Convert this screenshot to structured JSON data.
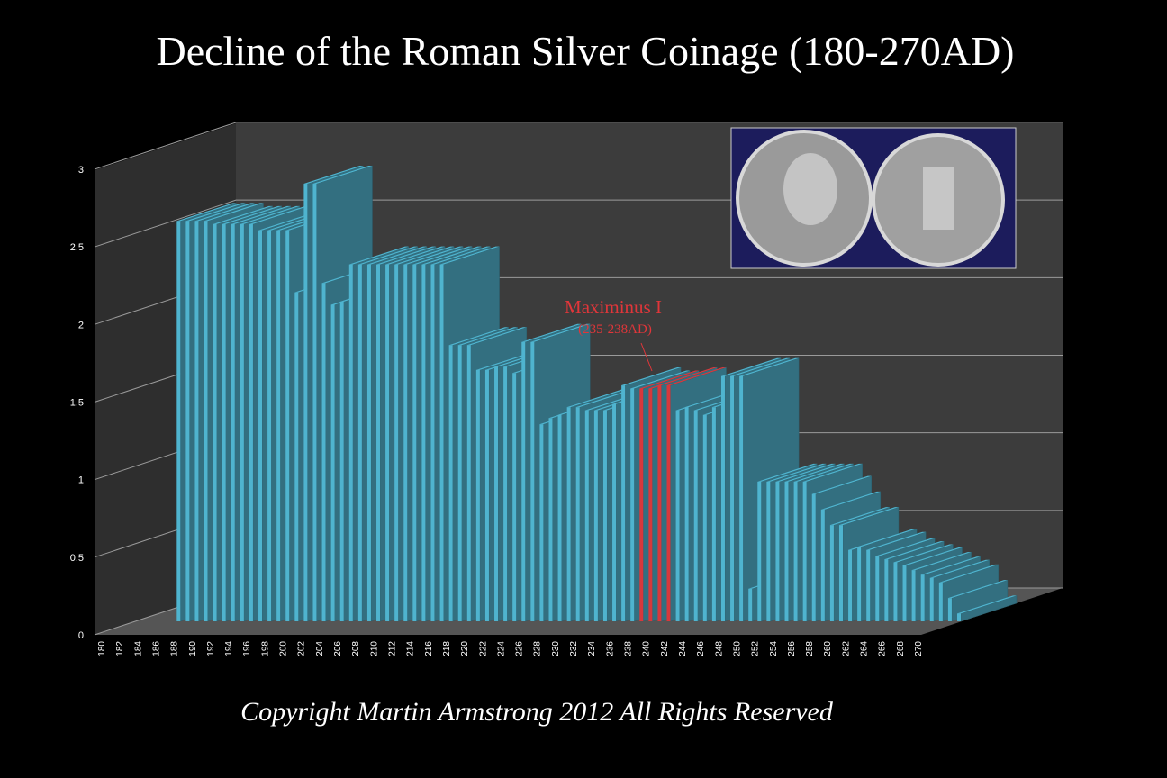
{
  "chart_data": {
    "type": "bar3d",
    "title": "Decline of the Roman Silver Coinage (180-270AD)",
    "footer": "Copyright Martin Armstrong 2012 All Rights Reserved",
    "categories": [
      "180",
      null,
      "182",
      null,
      "184",
      null,
      "186",
      null,
      "188",
      null,
      "190",
      null,
      "192",
      null,
      "194",
      null,
      "196",
      null,
      "198",
      null,
      "200",
      null,
      "202",
      null,
      "204",
      null,
      "206",
      null,
      "208",
      null,
      "210",
      null,
      "212",
      null,
      "214",
      null,
      "216",
      null,
      "218",
      null,
      "220",
      null,
      "222",
      null,
      "224",
      null,
      "226",
      null,
      "228",
      null,
      "230",
      null,
      "232",
      null,
      "234",
      null,
      "236",
      null,
      "238",
      null,
      "240",
      null,
      "242",
      null,
      "244",
      null,
      "246",
      null,
      "248",
      null,
      "250",
      null,
      "252",
      null,
      "254",
      null,
      "256",
      null,
      "258",
      null,
      "260",
      null,
      "262",
      null,
      "264",
      null,
      "266",
      null,
      "268",
      null,
      "270"
    ],
    "values": [
      null,
      null,
      null,
      null,
      2.58,
      2.58,
      2.58,
      2.58,
      2.56,
      2.56,
      2.56,
      2.56,
      2.56,
      2.52,
      2.52,
      2.52,
      2.52,
      2.12,
      2.82,
      2.82,
      2.18,
      2.04,
      2.06,
      2.3,
      2.3,
      2.3,
      2.3,
      2.3,
      2.3,
      2.3,
      2.3,
      2.3,
      2.3,
      2.3,
      1.78,
      1.78,
      1.78,
      1.62,
      1.62,
      1.64,
      1.64,
      1.6,
      1.8,
      1.8,
      1.27,
      1.31,
      1.33,
      1.38,
      1.38,
      1.36,
      1.36,
      1.36,
      1.4,
      1.52,
      1.5,
      1.5,
      1.5,
      1.52,
      1.52,
      1.36,
      1.38,
      1.36,
      1.33,
      1.38,
      1.58,
      1.58,
      1.58,
      0.21,
      0.9,
      0.9,
      0.9,
      0.9,
      0.9,
      0.9,
      0.82,
      0.72,
      0.62,
      0.62,
      0.46,
      0.48,
      0.46,
      0.42,
      0.4,
      0.38,
      0.36,
      0.33,
      0.3,
      0.28,
      0.25,
      0.15,
      0.05
    ],
    "color": "#4fb4cf",
    "highlight": {
      "indices": [
        55,
        56,
        57,
        58
      ],
      "color": "#d8383c"
    },
    "annotation": {
      "text": "Maximinus I",
      "subtext": "(235-238AD)",
      "color": "#e0363a"
    },
    "ylim": [
      0,
      3
    ],
    "yticks": [
      0,
      0.5,
      1,
      1.5,
      2,
      2.5,
      3
    ],
    "grid": true
  }
}
